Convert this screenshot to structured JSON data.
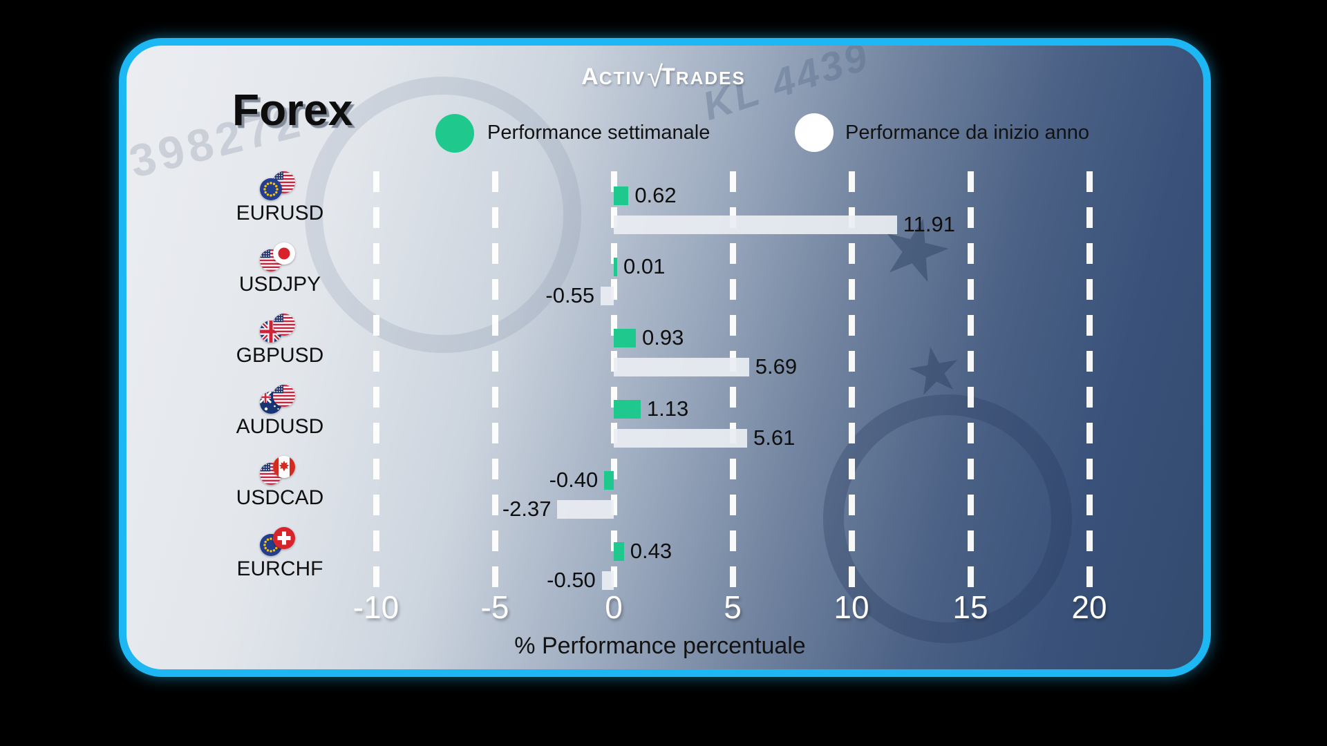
{
  "header": {
    "brand": {
      "part1": "A",
      "part2": "CTIV",
      "check": "√",
      "part3": "T",
      "part4": "RADES"
    },
    "title": "Forex"
  },
  "legend": {
    "weekly": {
      "label": "Performance settimanale",
      "color": "#1fc98e"
    },
    "ytd": {
      "label": "Performance da inizio anno",
      "color": "#ffffff"
    }
  },
  "watermarks": {
    "serial_left": "398272",
    "serial_right": "KL 4439",
    "stars": "★"
  },
  "chart_data": {
    "type": "bar",
    "orientation": "horizontal",
    "title": "Forex",
    "xlabel": "% Performance percentuale",
    "xticks": [
      -10,
      -5,
      0,
      5,
      10,
      15,
      20
    ],
    "xlim": [
      -12.6,
      22.6
    ],
    "grid": {
      "style": "dashed",
      "color": "#ffffff",
      "axis": "x"
    },
    "legend_position": "top",
    "categories": [
      "EURUSD",
      "USDJPY",
      "GBPUSD",
      "AUDUSD",
      "USDCAD",
      "EURCHF"
    ],
    "pair_flags": [
      [
        "eu",
        "us"
      ],
      [
        "us",
        "jp"
      ],
      [
        "gb",
        "us"
      ],
      [
        "au",
        "us"
      ],
      [
        "us",
        "ca"
      ],
      [
        "eu",
        "ch"
      ]
    ],
    "front_flag": [
      "first",
      "second",
      "second",
      "second",
      "second",
      "second"
    ],
    "series": [
      {
        "name": "Performance settimanale",
        "color": "#1fc98e",
        "values": [
          0.62,
          0.01,
          0.93,
          1.13,
          -0.4,
          0.43
        ],
        "labels": [
          "0.62",
          "0.01",
          "0.93",
          "1.13",
          "-0.40",
          "0.43"
        ]
      },
      {
        "name": "Performance da inizio anno",
        "color": "#e9edf2",
        "values": [
          11.91,
          -0.55,
          5.69,
          5.61,
          -2.37,
          -0.5
        ],
        "labels": [
          "11.91",
          "-0.55",
          "5.69",
          "5.61",
          "-2.37",
          "-0.50"
        ]
      }
    ]
  },
  "colors": {
    "background": "#000000",
    "card_border": "#1db7f3",
    "accent_green": "#1fc98e",
    "bar_white": "#e9edf2",
    "tick_text": "#ffffff",
    "label_text": "#111111"
  }
}
